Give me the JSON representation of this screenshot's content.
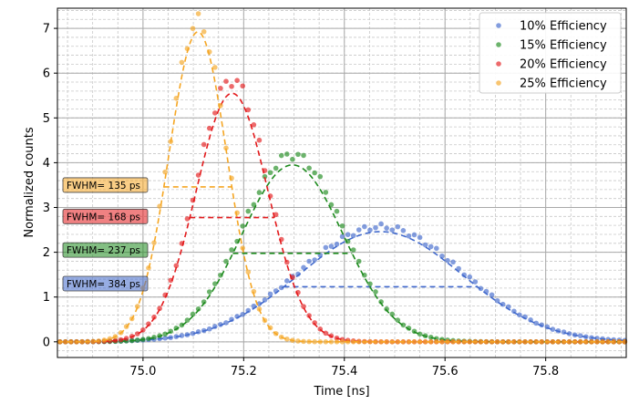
{
  "chart_data": {
    "type": "scatter",
    "title": "",
    "xlabel": "Time [ns]",
    "ylabel": "Normalized counts",
    "xlim": [
      74.83,
      75.96
    ],
    "ylim": [
      -0.35,
      7.45
    ],
    "xticks": [
      75.0,
      75.2,
      75.4,
      75.6,
      75.8
    ],
    "xtick_labels": [
      "75.0",
      "75.2",
      "75.4",
      "75.6",
      "75.8"
    ],
    "yticks": [
      0,
      1,
      2,
      3,
      4,
      5,
      6,
      7
    ],
    "ytick_labels": [
      "0",
      "1",
      "2",
      "3",
      "4",
      "5",
      "6",
      "7"
    ],
    "grid": true,
    "minor_grid": true,
    "legend_position": "top-right",
    "series": [
      {
        "name": "10% Efficiency",
        "color": "#4169cc",
        "center": 75.472,
        "peak": 2.46,
        "fwhm": 0.384,
        "points_peak": 2.57
      },
      {
        "name": "15% Efficiency",
        "color": "#1d8a1d",
        "center": 75.297,
        "peak": 3.95,
        "fwhm": 0.237,
        "points_peak": 4.18
      },
      {
        "name": "20% Efficiency",
        "color": "#e31a1c",
        "center": 75.177,
        "peak": 5.55,
        "fwhm": 0.168,
        "points_peak": 5.85
      },
      {
        "name": "25% Efficiency",
        "color": "#f5a623",
        "center": 75.109,
        "peak": 6.92,
        "fwhm": 0.135,
        "points_peak": 7.15
      }
    ],
    "fwhm_labels": [
      {
        "text": "FWHM= 135 ps",
        "color": "#f5a623",
        "y": 3.5
      },
      {
        "text": "FWHM= 168 ps",
        "color": "#e31a1c",
        "y": 2.8
      },
      {
        "text": "FWHM= 237 ps",
        "color": "#1d8a1d",
        "y": 2.05
      },
      {
        "text": "FWHM= 384 ps",
        "color": "#4169cc",
        "y": 1.3
      }
    ]
  }
}
